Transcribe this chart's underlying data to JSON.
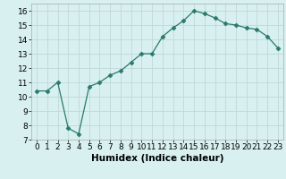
{
  "x": [
    0,
    1,
    2,
    3,
    4,
    5,
    6,
    7,
    8,
    9,
    10,
    11,
    12,
    13,
    14,
    15,
    16,
    17,
    18,
    19,
    20,
    21,
    22,
    23
  ],
  "y": [
    10.4,
    10.4,
    11.0,
    7.8,
    7.4,
    10.7,
    11.0,
    11.5,
    11.8,
    12.4,
    13.0,
    13.0,
    14.2,
    14.8,
    15.3,
    16.0,
    15.8,
    15.5,
    15.1,
    15.0,
    14.8,
    14.7,
    14.2,
    13.4
  ],
  "line_color": "#2a7a6a",
  "marker": "D",
  "marker_size": 2.5,
  "bg_color": "#d8f0f0",
  "grid_color": "#c0d8d8",
  "xlim": [
    -0.5,
    23.5
  ],
  "ylim": [
    7,
    16.5
  ],
  "yticks": [
    7,
    8,
    9,
    10,
    11,
    12,
    13,
    14,
    15,
    16
  ],
  "xticks": [
    0,
    1,
    2,
    3,
    4,
    5,
    6,
    7,
    8,
    9,
    10,
    11,
    12,
    13,
    14,
    15,
    16,
    17,
    18,
    19,
    20,
    21,
    22,
    23
  ],
  "tick_fontsize": 6.5,
  "xlabel": "Humidex (Indice chaleur)",
  "xlabel_fontsize": 7.5
}
